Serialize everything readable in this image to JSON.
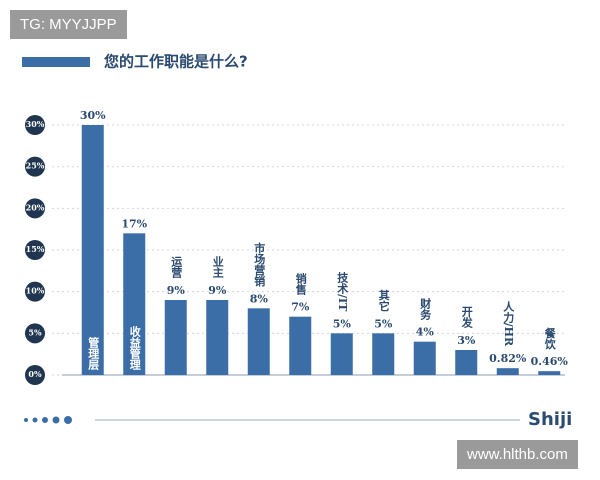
{
  "chart_data": {
    "type": "bar",
    "title": "您的工作职能是什么?",
    "categories": [
      "管理层",
      "收益管理",
      "运营",
      "业主",
      "市场营销",
      "销售",
      "技术/IT",
      "其它",
      "财务",
      "开发",
      "人力/HR",
      "餐饮"
    ],
    "values": [
      30,
      17,
      9,
      9,
      8,
      7,
      5,
      5,
      4,
      3,
      0.82,
      0.46
    ],
    "value_labels": [
      "30%",
      "17%",
      "9%",
      "9%",
      "8%",
      "7%",
      "5%",
      "5%",
      "4%",
      "3%",
      "0.82%",
      "0.46%"
    ],
    "color": "#3b6ea6",
    "ylim": [
      0,
      30
    ],
    "yticks": [
      {
        "value": 0,
        "label": "0%"
      },
      {
        "value": 5,
        "label": "5%"
      },
      {
        "value": 10,
        "label": "10%"
      },
      {
        "value": 15,
        "label": "15%"
      },
      {
        "value": 20,
        "label": "20%"
      },
      {
        "value": 25,
        "label": "25%"
      },
      {
        "value": 30,
        "label": "30%"
      }
    ],
    "grid": true
  },
  "logo": "Shiji",
  "watermarks": {
    "top": "TG: MYYJJPP",
    "bottom": "www.hlthb.com"
  }
}
